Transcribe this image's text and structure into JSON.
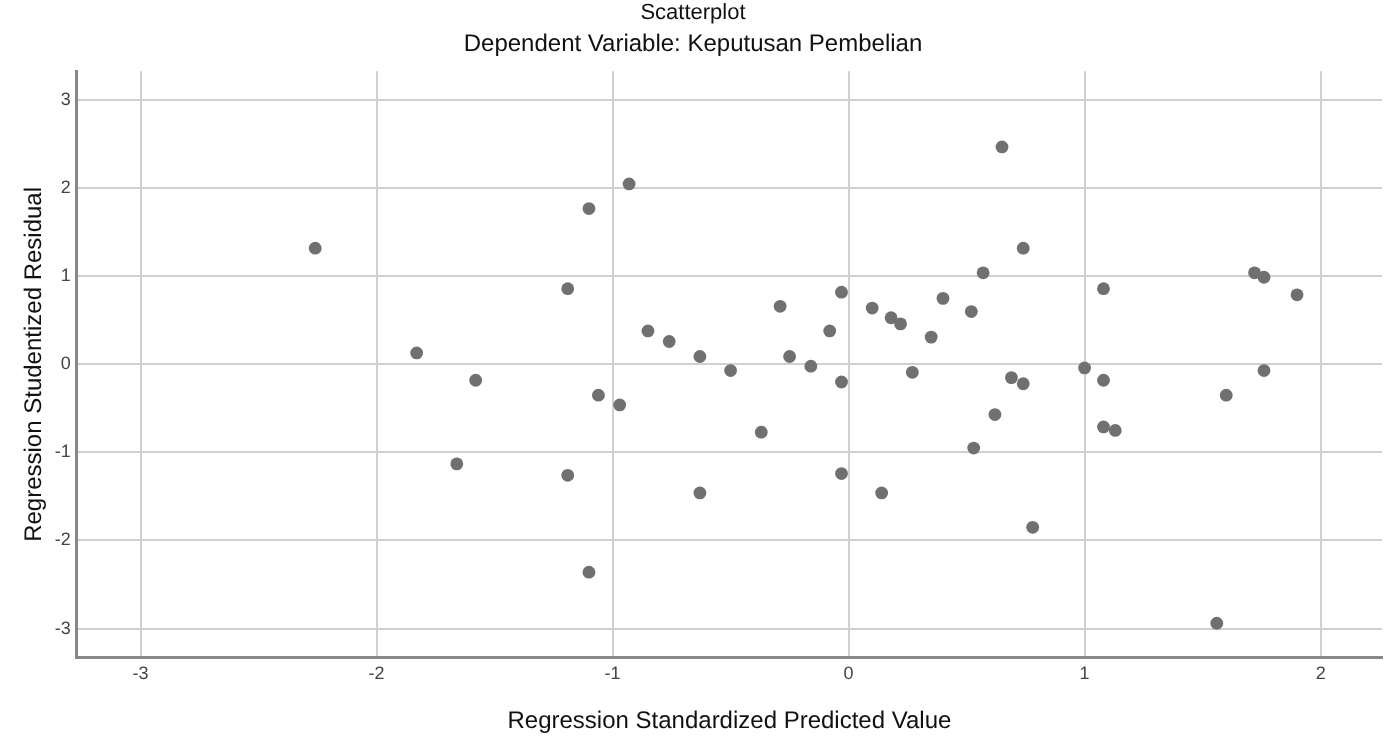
{
  "chart_data": {
    "type": "scatter",
    "title": "Scatterplot",
    "subtitle": "Dependent Variable: Keputusan Pembelian",
    "xlabel": "Regression Standardized Predicted Value",
    "ylabel": "Regression Studentized Residual",
    "xlim": [
      -3.27,
      2.26
    ],
    "xticks": [
      -3,
      -2,
      -1,
      0,
      1,
      2
    ],
    "ylim": [
      -3.33,
      3.33
    ],
    "yticks": [
      -3,
      -2,
      -1,
      0,
      1,
      2,
      3
    ],
    "grid": true,
    "legend": false,
    "marker": "circle",
    "series": [
      {
        "color": "#707070",
        "x": [
          -2.26,
          -1.83,
          -1.58,
          -1.66,
          -1.19,
          -1.1,
          -0.93,
          -1.06,
          -0.97,
          -1.19,
          -1.1,
          -0.85,
          -0.76,
          -0.63,
          -0.5,
          -0.63,
          -0.37,
          -0.29,
          -0.25,
          -0.16,
          -0.08,
          -0.03,
          -0.03,
          -0.03,
          0.1,
          0.18,
          0.22,
          0.14,
          0.27,
          0.35,
          0.4,
          0.52,
          0.57,
          0.65,
          0.74,
          0.69,
          0.74,
          0.62,
          0.53,
          0.78,
          1.0,
          1.08,
          1.08,
          1.08,
          1.13,
          1.6,
          1.56,
          1.72,
          1.76,
          1.76,
          1.9
        ],
        "values": [
          1.32,
          0.13,
          -0.18,
          -1.13,
          0.86,
          1.77,
          2.05,
          -0.35,
          -0.46,
          -1.26,
          -2.36,
          0.38,
          0.26,
          0.09,
          -0.07,
          -1.46,
          -0.77,
          0.66,
          0.09,
          -0.02,
          0.38,
          0.82,
          -0.2,
          -1.24,
          0.64,
          0.53,
          0.46,
          -1.46,
          -0.09,
          0.31,
          0.75,
          0.6,
          1.04,
          2.47,
          1.32,
          -0.15,
          -0.22,
          -0.57,
          -0.95,
          -1.85,
          -0.04,
          0.86,
          -0.18,
          -0.71,
          -0.75,
          -0.35,
          -2.94,
          1.04,
          0.99,
          -0.07,
          0.79
        ]
      }
    ]
  }
}
